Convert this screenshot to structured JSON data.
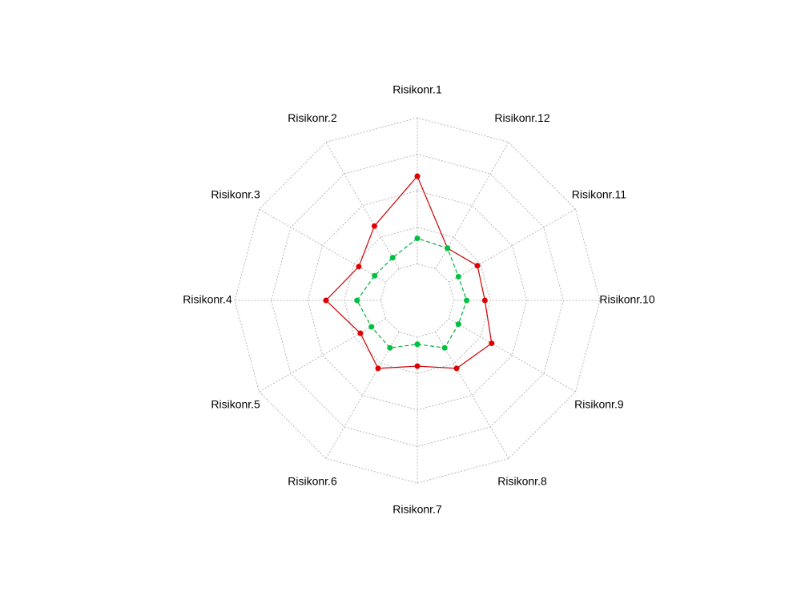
{
  "chart_data": {
    "type": "radar",
    "categories": [
      "Risikonr.1",
      "Risikonr.2",
      "Risikonr.3",
      "Risikonr.4",
      "Risikonr.5",
      "Risikonr.6",
      "Risikonr.7",
      "Risikonr.8",
      "Risikonr.9",
      "Risikonr.10",
      "Risikonr.11",
      "Risikonr.12"
    ],
    "rlim": [
      0,
      4
    ],
    "rticks": [
      0,
      1,
      2,
      3,
      4
    ],
    "grid": true,
    "series": [
      {
        "color": "#e00000",
        "line_color": "#cc0000",
        "dashed": false,
        "values": [
          2.4,
          1.35,
          0.85,
          1.5,
          0.8,
          1.15,
          0.8,
          1.15,
          1.35,
          0.85,
          0.9,
          0.65
        ]
      },
      {
        "color": "#00c040",
        "line_color": "#00b040",
        "dashed": true,
        "values": [
          0.7,
          0.35,
          0.35,
          0.65,
          0.45,
          0.5,
          0.2,
          0.5,
          0.3,
          0.35,
          0.3,
          0.65
        ]
      }
    ]
  }
}
